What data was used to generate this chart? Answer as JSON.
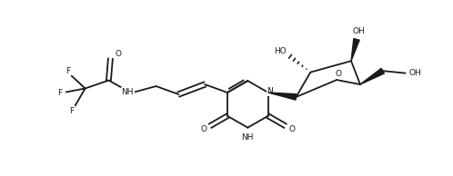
{
  "bg_color": "#ffffff",
  "line_color": "#1a1a1a",
  "line_width": 1.3,
  "font_size": 6.5,
  "figsize": [
    4.98,
    1.94
  ],
  "dpi": 100,
  "xlim": [
    0,
    9.96
  ],
  "ylim": [
    0,
    3.88
  ]
}
